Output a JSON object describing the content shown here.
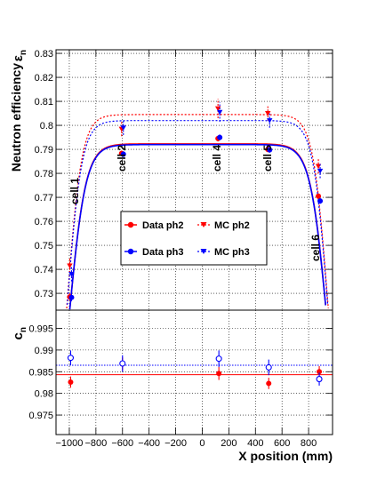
{
  "chart_data": [
    {
      "type": "scatter",
      "panel": "top",
      "ylabel_main": "Neutron efficiency",
      "ylabel_symbol": "ε",
      "ylabel_sub": "n",
      "ylim": [
        0.723,
        0.8315
      ],
      "xlim": [
        -1100,
        980
      ],
      "yticks": [
        0.73,
        0.74,
        0.75,
        0.76,
        0.77,
        0.78,
        0.79,
        0.8,
        0.81,
        0.82,
        0.83
      ],
      "yticklabels": [
        "0.73",
        "0.74",
        "0.75",
        "0.76",
        "0.77",
        "0.78",
        "0.79",
        "0.8",
        "0.81",
        "0.82",
        "0.83"
      ],
      "grid": true,
      "legend_placement": "center",
      "series": [
        {
          "name": "Data ph2",
          "color": "#ff0000",
          "marker": "filled-circle",
          "line": "solid",
          "x": [
            -990,
            -600,
            125,
            500,
            880
          ],
          "y": [
            0.7285,
            0.7883,
            0.7945,
            0.79,
            0.7705
          ],
          "err": [
            0.0015,
            0.0012,
            0.0012,
            0.0012,
            0.0012
          ],
          "plateau": 0.7923
        },
        {
          "name": "MC ph2",
          "color": "#ff0000",
          "marker": "triangle-down",
          "line": "dashed",
          "x": [
            -990,
            -600,
            125,
            500,
            880
          ],
          "y": [
            0.7415,
            0.7985,
            0.807,
            0.805,
            0.783
          ],
          "err": [
            0.003,
            0.003,
            0.004,
            0.003,
            0.003
          ],
          "plateau": 0.8045
        },
        {
          "name": "Data ph3",
          "color": "#0000ff",
          "marker": "filled-circle",
          "line": "solid",
          "x": [
            -990,
            -600,
            125,
            500,
            880
          ],
          "y": [
            0.7283,
            0.788,
            0.795,
            0.7898,
            0.7685
          ],
          "err": [
            0.0015,
            0.0012,
            0.0012,
            0.0012,
            0.0012
          ],
          "plateau": 0.792
        },
        {
          "name": "MC ph3",
          "color": "#0000ff",
          "marker": "triangle-down",
          "line": "dashed",
          "x": [
            -990,
            -600,
            125,
            500,
            880
          ],
          "y": [
            0.738,
            0.799,
            0.8055,
            0.802,
            0.781
          ],
          "err": [
            0.003,
            0.003,
            0.004,
            0.003,
            0.003
          ],
          "plateau": 0.802
        }
      ],
      "annotations": [
        "cell 1",
        "cell 2",
        "cell 4",
        "cell 5",
        "cell 6"
      ]
    },
    {
      "type": "scatter",
      "panel": "bottom",
      "ylabel_symbol": "c",
      "ylabel_sub": "n",
      "xlabel": "X position (mm)",
      "ylim": [
        0.9705,
        0.9992
      ],
      "xlim": [
        -1100,
        980
      ],
      "yticks": [
        0.975,
        0.98,
        0.985,
        0.99,
        0.995
      ],
      "yticklabels": [
        "0.975",
        "0.98",
        "0.985",
        "0.99",
        "0.995"
      ],
      "xticks": [
        -1000,
        -800,
        -600,
        -400,
        -200,
        0,
        200,
        400,
        600,
        800
      ],
      "xticklabels": [
        "−1000",
        "−800",
        "−600",
        "−400",
        "−200",
        "0",
        "200",
        "400",
        "600",
        "800"
      ],
      "grid": true,
      "series": [
        {
          "name": "ph2",
          "color": "#ff0000",
          "marker": "filled-circle",
          "x": [
            -990,
            -600,
            125,
            500,
            880
          ],
          "y": [
            0.9826,
            0.9868,
            0.9846,
            0.9823,
            0.985
          ],
          "err": [
            0.0013,
            0.0015,
            0.0015,
            0.0013,
            0.0013
          ],
          "fit": 0.9843
        },
        {
          "name": "ph3",
          "color": "#0000ff",
          "marker": "open-circle",
          "x": [
            -990,
            -600,
            125,
            500,
            880
          ],
          "y": [
            0.9882,
            0.9869,
            0.988,
            0.986,
            0.9833
          ],
          "err": [
            0.0017,
            0.0019,
            0.0019,
            0.0018,
            0.0015
          ],
          "fit": 0.9865
        }
      ]
    }
  ]
}
